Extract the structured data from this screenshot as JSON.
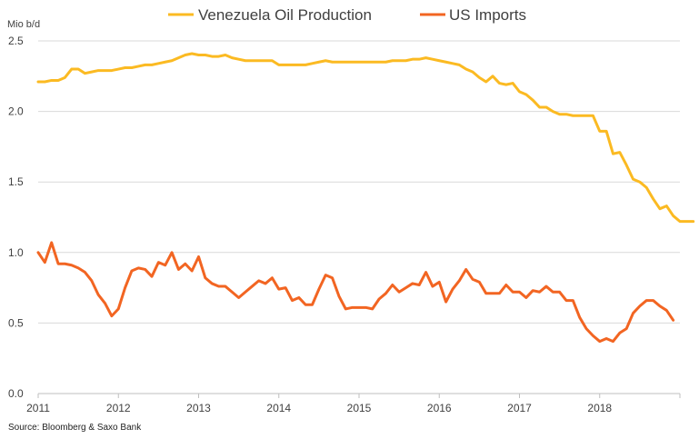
{
  "chart_data": {
    "type": "line",
    "ylabel": "Mio b/d",
    "source": "Source: Bloomberg & Saxo Bank",
    "ylim": [
      0,
      2.5
    ],
    "xlim": [
      2011,
      2019
    ],
    "yticks": [
      "0.0",
      "0.5",
      "1.0",
      "1.5",
      "2.0",
      "2.5"
    ],
    "xticks": [
      "2011",
      "2012",
      "2013",
      "2014",
      "2015",
      "2016",
      "2017",
      "2018"
    ],
    "grid": "horizontal",
    "legend_position": "top",
    "x_step_months": 1,
    "x_start": "2011-01",
    "series": [
      {
        "name": "Venezuela Oil Production",
        "color": "#FBBA22",
        "values": [
          2.21,
          2.21,
          2.22,
          2.22,
          2.24,
          2.3,
          2.3,
          2.27,
          2.28,
          2.29,
          2.29,
          2.29,
          2.3,
          2.31,
          2.31,
          2.32,
          2.33,
          2.33,
          2.34,
          2.35,
          2.36,
          2.38,
          2.4,
          2.41,
          2.4,
          2.4,
          2.39,
          2.39,
          2.4,
          2.38,
          2.37,
          2.36,
          2.36,
          2.36,
          2.36,
          2.36,
          2.33,
          2.33,
          2.33,
          2.33,
          2.33,
          2.34,
          2.35,
          2.36,
          2.35,
          2.35,
          2.35,
          2.35,
          2.35,
          2.35,
          2.35,
          2.35,
          2.35,
          2.36,
          2.36,
          2.36,
          2.37,
          2.37,
          2.38,
          2.37,
          2.36,
          2.35,
          2.34,
          2.33,
          2.3,
          2.28,
          2.24,
          2.21,
          2.25,
          2.2,
          2.19,
          2.2,
          2.14,
          2.12,
          2.08,
          2.03,
          2.03,
          2.0,
          1.98,
          1.98,
          1.97,
          1.97,
          1.97,
          1.97,
          1.86,
          1.86,
          1.7,
          1.71,
          1.62,
          1.52,
          1.5,
          1.46,
          1.38,
          1.31,
          1.33,
          1.26,
          1.22,
          1.22,
          1.22
        ]
      },
      {
        "name": "US Imports",
        "color": "#F26522",
        "values": [
          1.0,
          0.93,
          1.07,
          0.92,
          0.92,
          0.91,
          0.89,
          0.86,
          0.8,
          0.7,
          0.64,
          0.55,
          0.6,
          0.75,
          0.87,
          0.89,
          0.88,
          0.83,
          0.93,
          0.91,
          1.0,
          0.88,
          0.92,
          0.87,
          0.97,
          0.82,
          0.78,
          0.76,
          0.76,
          0.72,
          0.68,
          0.72,
          0.76,
          0.8,
          0.78,
          0.82,
          0.74,
          0.75,
          0.66,
          0.68,
          0.63,
          0.63,
          0.74,
          0.84,
          0.82,
          0.69,
          0.6,
          0.61,
          0.61,
          0.61,
          0.6,
          0.67,
          0.71,
          0.77,
          0.72,
          0.75,
          0.78,
          0.77,
          0.86,
          0.76,
          0.79,
          0.65,
          0.74,
          0.8,
          0.88,
          0.81,
          0.79,
          0.71,
          0.71,
          0.71,
          0.77,
          0.72,
          0.72,
          0.68,
          0.73,
          0.72,
          0.76,
          0.72,
          0.72,
          0.66,
          0.66,
          0.54,
          0.46,
          0.41,
          0.37,
          0.39,
          0.37,
          0.43,
          0.46,
          0.57,
          0.62,
          0.66,
          0.66,
          0.62,
          0.59,
          0.52
        ]
      }
    ]
  }
}
